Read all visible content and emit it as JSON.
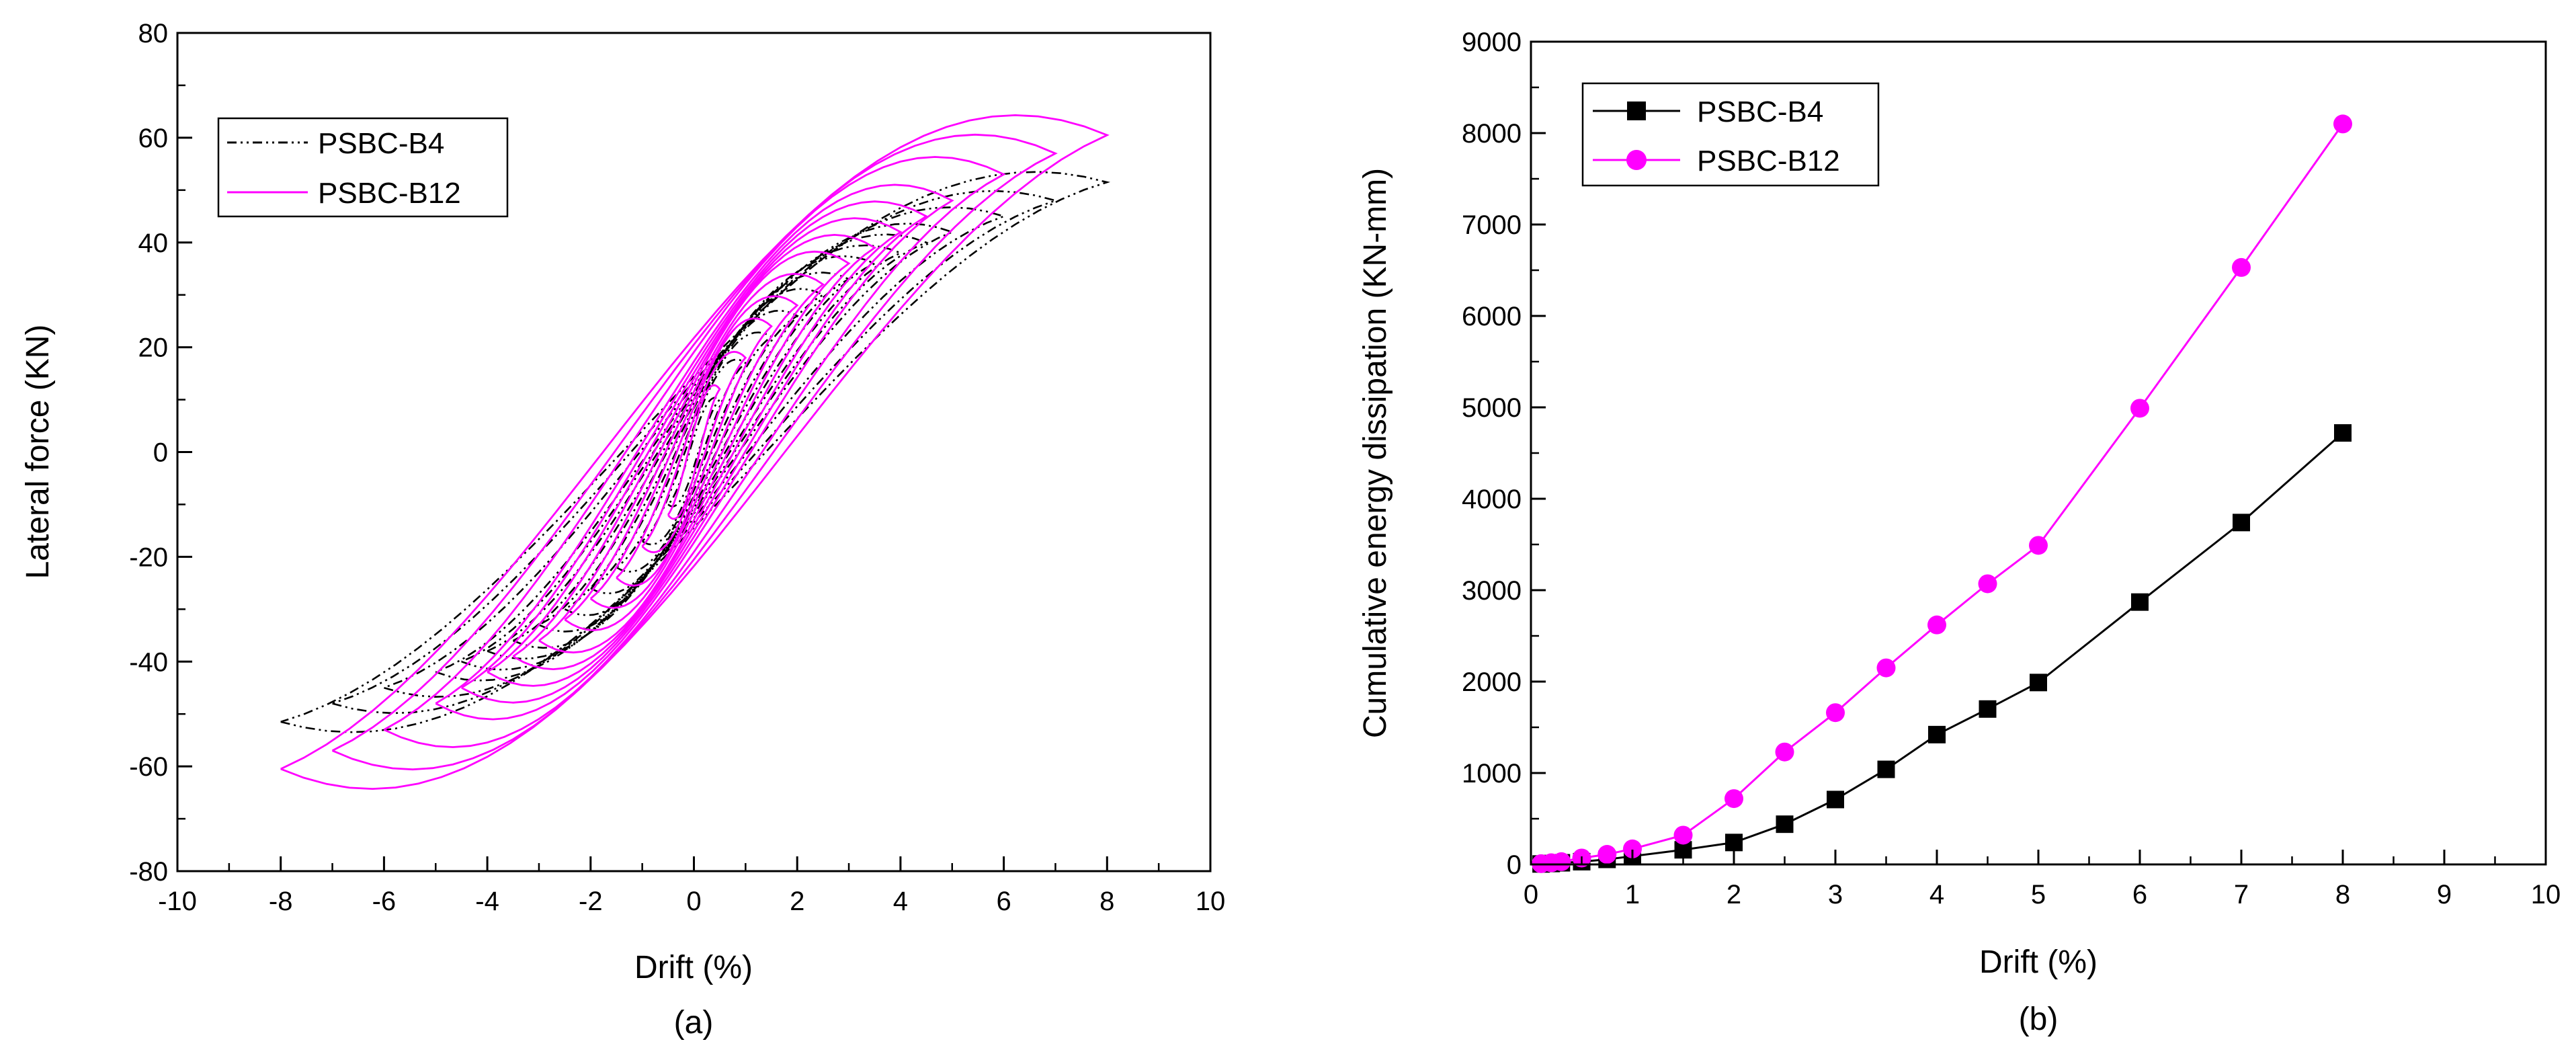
{
  "chart_data": [
    {
      "type": "line",
      "panel": "(a)",
      "xlabel": "Drift (%)",
      "ylabel": "Lateral force (KN)",
      "xlim": [
        -10,
        10
      ],
      "ylim": [
        -80,
        80
      ],
      "xticks": [
        "-10",
        "-8",
        "-6",
        "-4",
        "-2",
        "0",
        "2",
        "4",
        "6",
        "8",
        "10"
      ],
      "yticks": [
        "-80",
        "-60",
        "-40",
        "-20",
        "0",
        "20",
        "40",
        "60",
        "80"
      ],
      "legend_position": "top-left",
      "series": [
        {
          "name": "PSBC-B4",
          "color": "#000000",
          "style": "dash-dot-dot",
          "note": "hysteresis loops; peak force at each drift amplitude",
          "x": [
            0.5,
            1,
            1.5,
            2,
            2.5,
            3,
            3.5,
            4,
            4.5,
            5,
            6,
            7,
            8
          ],
          "peak_force": [
            10,
            17,
            22,
            26,
            30,
            33,
            36,
            38,
            40,
            42,
            45,
            48,
            51.5
          ]
        },
        {
          "name": "PSBC-B12",
          "color": "#ff00ff",
          "style": "solid",
          "note": "hysteresis loops; peak force at each drift amplitude",
          "x": [
            0.5,
            1,
            1.5,
            2,
            2.5,
            3,
            3.5,
            4,
            4.5,
            5,
            6,
            7,
            8
          ],
          "peak_force": [
            12,
            18,
            24,
            28,
            32,
            36,
            39,
            42,
            45,
            48,
            53,
            57,
            60.5
          ]
        }
      ]
    },
    {
      "type": "line",
      "panel": "(b)",
      "xlabel": "Drift (%)",
      "ylabel": "Cumulative energy dissipation (KN-mm)",
      "xlim": [
        0,
        10
      ],
      "ylim": [
        0,
        9000
      ],
      "xticks": [
        "0",
        "1",
        "2",
        "3",
        "4",
        "5",
        "6",
        "7",
        "8",
        "9",
        "10"
      ],
      "yticks": [
        "0",
        "1000",
        "2000",
        "3000",
        "4000",
        "5000",
        "6000",
        "7000",
        "8000",
        "9000"
      ],
      "legend_position": "top-left",
      "x": [
        0.1,
        0.2,
        0.3,
        0.5,
        0.75,
        1,
        1.5,
        2,
        2.5,
        3,
        3.5,
        4,
        4.5,
        5,
        6,
        7,
        8
      ],
      "series": [
        {
          "name": "PSBC-B4",
          "color": "#000000",
          "marker": "square",
          "values": [
            5,
            10,
            18,
            30,
            55,
            90,
            160,
            240,
            440,
            710,
            1040,
            1420,
            1700,
            1990,
            2870,
            3740,
            4720
          ]
        },
        {
          "name": "PSBC-B12",
          "color": "#ff00ff",
          "marker": "circle",
          "values": [
            8,
            18,
            30,
            70,
            110,
            170,
            320,
            720,
            1230,
            1660,
            2150,
            2620,
            3070,
            3490,
            4990,
            6530,
            8100
          ]
        }
      ]
    }
  ]
}
